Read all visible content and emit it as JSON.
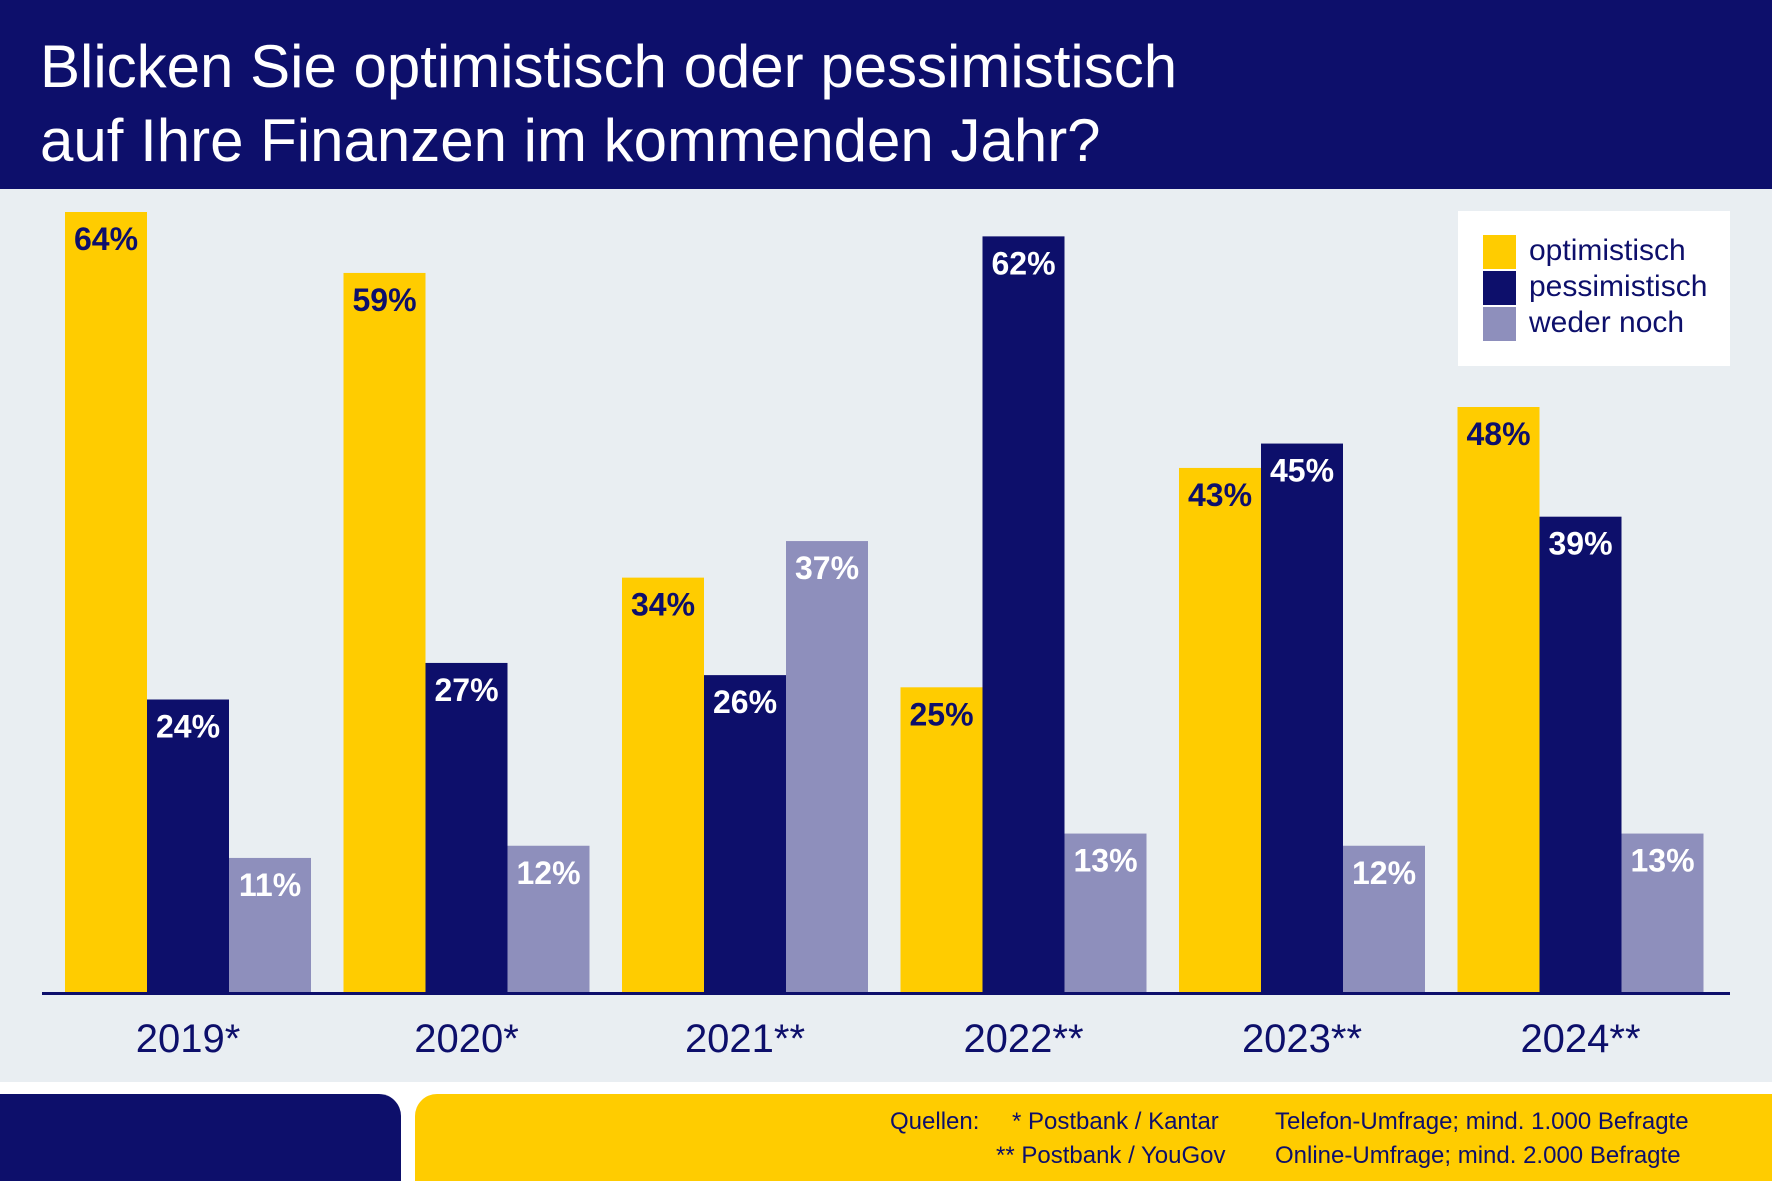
{
  "header": {
    "title_line1": "Blicken Sie optimistisch oder pessimistisch",
    "title_line2": "auf Ihre Finanzen im kommenden Jahr?"
  },
  "colors": {
    "optimistisch": "#ffcc00",
    "pessimistisch": "#0d0f6b",
    "weder_noch": "#8e8fbc",
    "label_dark": "#0d0f6b",
    "label_light": "#ffffff"
  },
  "chart_data": {
    "type": "bar",
    "title": "Blicken Sie optimistisch oder pessimistisch auf Ihre Finanzen im kommenden Jahr?",
    "categories": [
      "2019*",
      "2020*",
      "2021**",
      "2022**",
      "2023**",
      "2024**"
    ],
    "series": [
      {
        "name": "optimistisch",
        "values": [
          64,
          59,
          34,
          25,
          43,
          48
        ],
        "labels": [
          "64%",
          "59%",
          "34%",
          "25%",
          "43%",
          "48%"
        ]
      },
      {
        "name": "pessimistisch",
        "values": [
          24,
          27,
          26,
          62,
          45,
          39
        ],
        "labels": [
          "24%",
          "27%",
          "26%",
          "62%",
          "45%",
          "39%"
        ]
      },
      {
        "name": "weder noch",
        "values": [
          11,
          12,
          37,
          13,
          12,
          13
        ],
        "labels": [
          "11%",
          "12%",
          "37%",
          "13%",
          "12%",
          "13%"
        ]
      }
    ],
    "xlabel": "",
    "ylabel": "",
    "ylim": [
      0,
      64
    ],
    "grid": false,
    "legend": "top-right"
  },
  "legend": {
    "items": [
      {
        "label": "optimistisch",
        "color": "#ffcc00"
      },
      {
        "label": "pessimistisch",
        "color": "#0d0f6b"
      },
      {
        "label": "weder noch",
        "color": "#8e8fbc"
      }
    ]
  },
  "footer": {
    "sources_label": "Quellen:",
    "source1_name": "* Postbank / Kantar",
    "source1_method": "Telefon-Umfrage; mind. 1.000 Befragte",
    "source2_name": "** Postbank / YouGov",
    "source2_method": "Online-Umfrage;  mind. 2.000 Befragte"
  }
}
